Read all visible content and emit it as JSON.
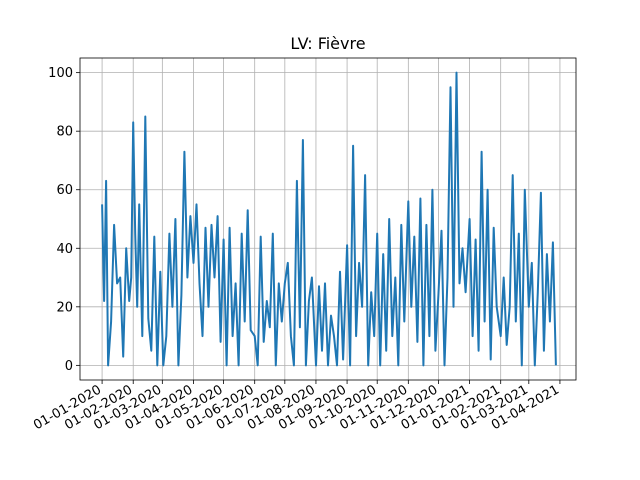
{
  "chart_data": {
    "type": "line",
    "title": "LV: Fièvre",
    "xlabel": "",
    "ylabel": "",
    "x_tick_labels": [
      "01-01-2020",
      "01-02-2020",
      "01-03-2020",
      "01-04-2020",
      "01-05-2020",
      "01-06-2020",
      "01-07-2020",
      "01-08-2020",
      "01-09-2020",
      "01-10-2020",
      "01-11-2020",
      "01-12-2020",
      "01-01-2021",
      "01-02-2021",
      "01-03-2021",
      "01-04-2021"
    ],
    "x_tick_dates": [
      "2020-01-01",
      "2020-02-01",
      "2020-03-01",
      "2020-04-01",
      "2020-05-01",
      "2020-06-01",
      "2020-07-01",
      "2020-08-01",
      "2020-09-01",
      "2020-10-01",
      "2020-11-01",
      "2020-12-01",
      "2021-01-01",
      "2021-02-01",
      "2021-03-01",
      "2021-04-01"
    ],
    "y_ticks": [
      0,
      20,
      40,
      60,
      80,
      100
    ],
    "xlim": [
      "2019-12-10",
      "2021-04-17"
    ],
    "ylim": [
      -5,
      105
    ],
    "grid": true,
    "line_color": "#1f77b4",
    "series": [
      {
        "x": [
          "2020-01-01",
          "2020-01-03",
          "2020-01-05",
          "2020-01-07",
          "2020-01-10",
          "2020-01-13",
          "2020-01-16",
          "2020-01-19",
          "2020-01-22",
          "2020-01-25",
          "2020-01-28",
          "2020-01-30",
          "2020-02-01",
          "2020-02-03",
          "2020-02-05",
          "2020-02-07",
          "2020-02-10",
          "2020-02-13",
          "2020-02-16",
          "2020-02-19",
          "2020-02-22",
          "2020-02-25",
          "2020-02-28",
          "2020-03-02",
          "2020-03-05",
          "2020-03-08",
          "2020-03-11",
          "2020-03-14",
          "2020-03-17",
          "2020-03-20",
          "2020-03-23",
          "2020-03-26",
          "2020-03-29",
          "2020-04-01",
          "2020-04-04",
          "2020-04-07",
          "2020-04-10",
          "2020-04-13",
          "2020-04-16",
          "2020-04-19",
          "2020-04-22",
          "2020-04-25",
          "2020-04-28",
          "2020-05-01",
          "2020-05-04",
          "2020-05-07",
          "2020-05-10",
          "2020-05-13",
          "2020-05-16",
          "2020-05-19",
          "2020-05-22",
          "2020-05-25",
          "2020-05-28",
          "2020-06-01",
          "2020-06-04",
          "2020-06-07",
          "2020-06-10",
          "2020-06-13",
          "2020-06-16",
          "2020-06-19",
          "2020-06-22",
          "2020-06-25",
          "2020-06-28",
          "2020-07-01",
          "2020-07-04",
          "2020-07-07",
          "2020-07-10",
          "2020-07-13",
          "2020-07-16",
          "2020-07-19",
          "2020-07-22",
          "2020-07-25",
          "2020-07-28",
          "2020-08-01",
          "2020-08-04",
          "2020-08-07",
          "2020-08-10",
          "2020-08-13",
          "2020-08-16",
          "2020-08-19",
          "2020-08-22",
          "2020-08-25",
          "2020-08-28",
          "2020-09-01",
          "2020-09-04",
          "2020-09-07",
          "2020-09-10",
          "2020-09-13",
          "2020-09-16",
          "2020-09-19",
          "2020-09-22",
          "2020-09-25",
          "2020-09-28",
          "2020-10-01",
          "2020-10-04",
          "2020-10-07",
          "2020-10-10",
          "2020-10-13",
          "2020-10-16",
          "2020-10-19",
          "2020-10-22",
          "2020-10-25",
          "2020-10-28",
          "2020-11-01",
          "2020-11-04",
          "2020-11-07",
          "2020-11-10",
          "2020-11-13",
          "2020-11-16",
          "2020-11-19",
          "2020-11-22",
          "2020-11-25",
          "2020-11-28",
          "2020-12-01",
          "2020-12-04",
          "2020-12-07",
          "2020-12-10",
          "2020-12-13",
          "2020-12-16",
          "2020-12-19",
          "2020-12-22",
          "2020-12-25",
          "2020-12-28",
          "2021-01-01",
          "2021-01-04",
          "2021-01-07",
          "2021-01-10",
          "2021-01-13",
          "2021-01-16",
          "2021-01-19",
          "2021-01-22",
          "2021-01-25",
          "2021-01-28",
          "2021-02-01",
          "2021-02-04",
          "2021-02-07",
          "2021-02-10",
          "2021-02-13",
          "2021-02-16",
          "2021-02-19",
          "2021-02-22",
          "2021-02-25",
          "2021-03-01",
          "2021-03-04",
          "2021-03-07",
          "2021-03-10",
          "2021-03-13",
          "2021-03-16",
          "2021-03-19",
          "2021-03-22",
          "2021-03-25",
          "2021-03-28"
        ],
        "values": [
          55,
          22,
          63,
          0,
          15,
          48,
          28,
          30,
          3,
          40,
          22,
          30,
          83,
          45,
          20,
          55,
          10,
          85,
          16,
          5,
          44,
          0,
          32,
          0,
          10,
          45,
          20,
          50,
          0,
          24,
          73,
          30,
          51,
          35,
          55,
          28,
          10,
          47,
          20,
          48,
          30,
          51,
          8,
          43,
          0,
          47,
          10,
          28,
          0,
          45,
          15,
          53,
          12,
          10,
          0,
          44,
          8,
          22,
          13,
          45,
          0,
          28,
          15,
          28,
          35,
          10,
          0,
          63,
          13,
          77,
          0,
          22,
          30,
          0,
          27,
          5,
          28,
          0,
          17,
          10,
          0,
          32,
          2,
          41,
          0,
          75,
          10,
          35,
          20,
          65,
          0,
          25,
          10,
          45,
          0,
          38,
          5,
          50,
          10,
          30,
          0,
          48,
          15,
          56,
          20,
          44,
          8,
          57,
          0,
          48,
          10,
          60,
          5,
          24,
          46,
          0,
          30,
          95,
          20,
          100,
          28,
          40,
          25,
          50,
          10,
          43,
          5,
          73,
          15,
          60,
          2,
          47,
          20,
          10,
          30,
          7,
          20,
          65,
          15,
          45,
          0,
          60,
          20,
          35,
          0,
          25,
          59,
          5,
          38,
          15,
          42,
          0
        ]
      }
    ]
  }
}
